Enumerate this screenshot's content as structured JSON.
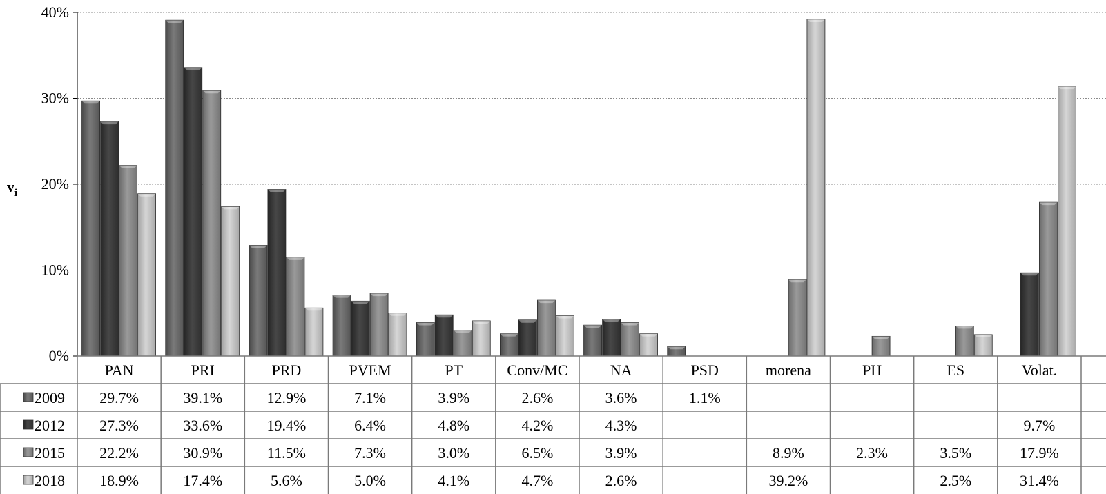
{
  "chart_data": {
    "type": "bar",
    "ylabel": "v",
    "ylabel_sub": "i",
    "ylim": [
      0,
      40
    ],
    "yticks": [
      "0%",
      "10%",
      "20%",
      "30%",
      "40%"
    ],
    "grid": true,
    "legend": "data-table",
    "categories": [
      "PAN",
      "PRI",
      "PRD",
      "PVEM",
      "PT",
      "Conv/MC",
      "NA",
      "PSD",
      "morena",
      "PH",
      "ES",
      "Volat."
    ],
    "series": [
      {
        "name": "2009",
        "color": "#6d6d6d",
        "values": [
          29.7,
          39.1,
          12.9,
          7.1,
          3.9,
          2.6,
          3.6,
          1.1,
          null,
          null,
          null,
          null
        ],
        "labels": [
          "29.7%",
          "39.1%",
          "12.9%",
          "7.1%",
          "3.9%",
          "2.6%",
          "3.6%",
          "1.1%",
          "",
          "",
          "",
          ""
        ]
      },
      {
        "name": "2012",
        "color": "#3d3d3d",
        "values": [
          27.3,
          33.6,
          19.4,
          6.4,
          4.8,
          4.2,
          4.3,
          null,
          null,
          null,
          null,
          9.7
        ],
        "labels": [
          "27.3%",
          "33.6%",
          "19.4%",
          "6.4%",
          "4.8%",
          "4.2%",
          "4.3%",
          "",
          "",
          "",
          "",
          "9.7%"
        ]
      },
      {
        "name": "2015",
        "color": "#8c8c8c",
        "values": [
          22.2,
          30.9,
          11.5,
          7.3,
          3.0,
          6.5,
          3.9,
          null,
          8.9,
          2.3,
          3.5,
          17.9
        ],
        "labels": [
          "22.2%",
          "30.9%",
          "11.5%",
          "7.3%",
          "3.0%",
          "6.5%",
          "3.9%",
          "",
          "8.9%",
          "2.3%",
          "3.5%",
          "17.9%"
        ]
      },
      {
        "name": "2018",
        "color": "#bdbdbd",
        "values": [
          18.9,
          17.4,
          5.6,
          5.0,
          4.1,
          4.7,
          2.6,
          null,
          39.2,
          null,
          2.5,
          31.4
        ],
        "labels": [
          "18.9%",
          "17.4%",
          "5.6%",
          "5.0%",
          "4.1%",
          "4.7%",
          "2.6%",
          "",
          "39.2%",
          "",
          "2.5%",
          "31.4%"
        ]
      }
    ]
  }
}
